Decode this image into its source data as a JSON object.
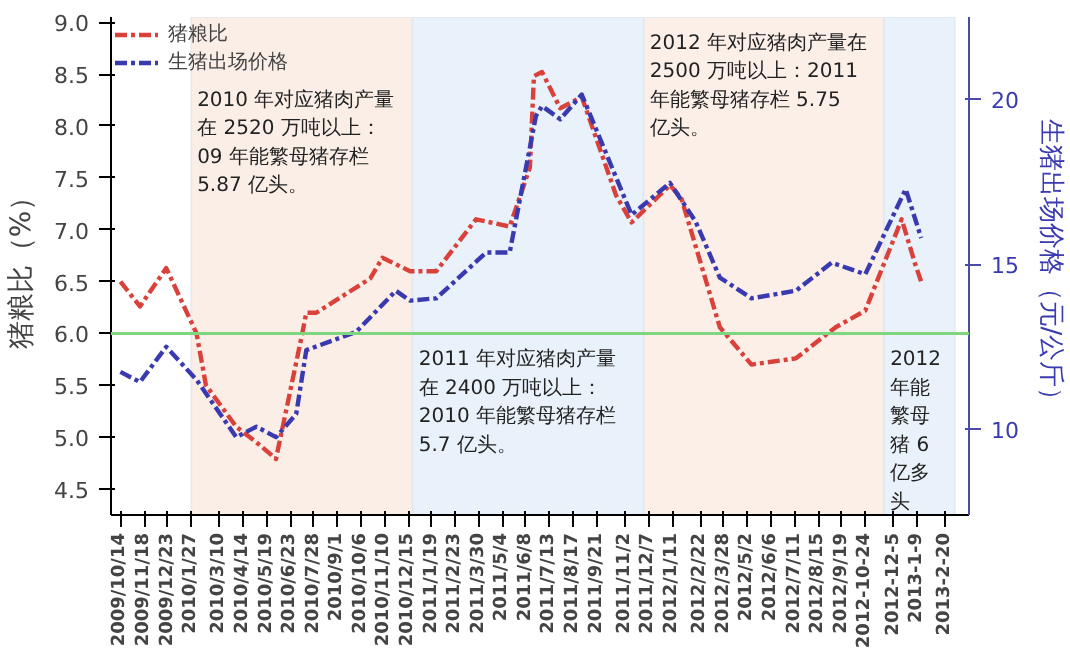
{
  "chart_data": {
    "type": "line",
    "ylabel": "猪粮比（%）",
    "y2label": "生猪出场价格（元/公斤）",
    "xlim": [
      "2009-09-30",
      "2013-03-27"
    ],
    "ylim": [
      4.25,
      9.05
    ],
    "y2lim": [
      7.4,
      22.5
    ],
    "xticks": [
      {
        "value": "2009-10-14",
        "label": "2009/10/14"
      },
      {
        "value": "2009-11-18",
        "label": "2009/11/18"
      },
      {
        "value": "2009-12-23",
        "label": "2009/12/23"
      },
      {
        "value": "2010-01-27",
        "label": "2010/1/27"
      },
      {
        "value": "2010-03-10",
        "label": "2010/3/10"
      },
      {
        "value": "2010-04-14",
        "label": "2010/4/14"
      },
      {
        "value": "2010-05-19",
        "label": "2010/5/19"
      },
      {
        "value": "2010-06-23",
        "label": "2010/6/23"
      },
      {
        "value": "2010-07-28",
        "label": "2010/7/28"
      },
      {
        "value": "2010-09-01",
        "label": "2010/9/1"
      },
      {
        "value": "2010-10-06",
        "label": "2010/10/6"
      },
      {
        "value": "2010-11-10",
        "label": "2010/11/10"
      },
      {
        "value": "2010-12-15",
        "label": "2010/12/15"
      },
      {
        "value": "2011-01-19",
        "label": "2011/1/19"
      },
      {
        "value": "2011-02-23",
        "label": "2011/2/23"
      },
      {
        "value": "2011-03-30",
        "label": "2011/3/30"
      },
      {
        "value": "2011-05-04",
        "label": "2011/5/4"
      },
      {
        "value": "2011-06-08",
        "label": "2011/6/8"
      },
      {
        "value": "2011-07-13",
        "label": "2011/7/13"
      },
      {
        "value": "2011-08-17",
        "label": "2011/8/17"
      },
      {
        "value": "2011-09-21",
        "label": "2011/9/21"
      },
      {
        "value": "2011-11-02",
        "label": "2011/11/2"
      },
      {
        "value": "2011-12-07",
        "label": "2011/12/7"
      },
      {
        "value": "2012-01-11",
        "label": "2012/1/11"
      },
      {
        "value": "2012-02-22",
        "label": "2012/2/22"
      },
      {
        "value": "2012-03-28",
        "label": "2012/3/28"
      },
      {
        "value": "2012-05-02",
        "label": "2012/5/2"
      },
      {
        "value": "2012-06-06",
        "label": "2012/6/6"
      },
      {
        "value": "2012-07-11",
        "label": "2012/7/11"
      },
      {
        "value": "2012-08-15",
        "label": "2012/8/15"
      },
      {
        "value": "2012-09-19",
        "label": "2012/9/19"
      },
      {
        "value": "2012-10-24",
        "label": "2012-10-24"
      },
      {
        "value": "2012-12-05",
        "label": "2012-12-5"
      },
      {
        "value": "2013-01-09",
        "label": "2013-1-9"
      },
      {
        "value": "2013-02-20",
        "label": "2013-2-20"
      }
    ],
    "yticks": [
      {
        "value": 4.5,
        "label": "4.5"
      },
      {
        "value": 5,
        "label": "5.0"
      },
      {
        "value": 5.5,
        "label": "5.5"
      },
      {
        "value": 6,
        "label": "6.0"
      },
      {
        "value": 6.5,
        "label": "6.5"
      },
      {
        "value": 7,
        "label": "7.0"
      },
      {
        "value": 7.5,
        "label": "7.5"
      },
      {
        "value": 8,
        "label": "8.0"
      },
      {
        "value": 8.5,
        "label": "8.5"
      },
      {
        "value": 9,
        "label": "9.0"
      }
    ],
    "y2ticks": [
      10,
      15,
      20
    ],
    "series": [
      {
        "name": "猪粮比",
        "color": "#d9413a",
        "x": [
          "2009-10-14",
          "2009-11-12",
          "2009-12-21",
          "2010-02-04",
          "2010-02-18",
          "2010-04-04",
          "2010-05-04",
          "2010-06-02",
          "2010-07-11",
          "2010-07-17",
          "2010-08-01",
          "2010-10-20",
          "2010-11-07",
          "2010-12-18",
          "2011-01-26",
          "2011-03-26",
          "2011-05-15",
          "2011-06-14",
          "2011-06-20",
          "2011-07-02",
          "2011-07-29",
          "2011-08-30",
          "2011-10-20",
          "2011-11-12",
          "2012-01-08",
          "2012-01-25",
          "2012-03-22",
          "2012-05-08",
          "2012-07-13",
          "2012-09-10",
          "2012-10-24",
          "2012-12-17",
          "2013-01-06",
          "2013-01-15"
        ],
        "values": [
          6.5,
          6.26,
          6.63,
          6.0,
          5.5,
          5.1,
          4.95,
          4.79,
          6.0,
          6.2,
          6.2,
          6.53,
          6.73,
          6.6,
          6.6,
          7.1,
          7.03,
          7.6,
          8.48,
          8.52,
          8.17,
          8.28,
          7.33,
          7.07,
          7.43,
          7.3,
          6.06,
          5.7,
          5.76,
          6.06,
          6.22,
          7.1,
          6.67,
          6.5
        ]
      },
      {
        "name": "生猪出场价格",
        "color": "#3a3ab0",
        "axis": "y2",
        "x": [
          "2009-10-14",
          "2009-11-12",
          "2009-12-21",
          "2010-02-04",
          "2010-04-04",
          "2010-05-04",
          "2010-06-02",
          "2010-07-02",
          "2010-07-17",
          "2010-09-29",
          "2010-11-27",
          "2010-12-18",
          "2011-01-26",
          "2011-04-10",
          "2011-05-15",
          "2011-06-23",
          "2011-07-02",
          "2011-07-29",
          "2011-08-30",
          "2011-11-12",
          "2012-01-08",
          "2012-02-15",
          "2012-03-22",
          "2012-05-08",
          "2012-07-13",
          "2012-09-04",
          "2012-10-24",
          "2012-12-23",
          "2013-01-15"
        ],
        "values": [
          11.74,
          11.43,
          12.5,
          11.5,
          9.76,
          10.08,
          9.76,
          10.46,
          12.4,
          12.95,
          14.2,
          13.9,
          13.97,
          15.36,
          15.36,
          19.5,
          19.8,
          19.4,
          20.15,
          16.5,
          17.47,
          16.3,
          14.6,
          13.97,
          14.2,
          15.05,
          14.7,
          17.28,
          15.8
        ]
      }
    ],
    "ref_lines": [
      {
        "axis": "y",
        "value": 6.0,
        "color": "#7ed67e"
      }
    ],
    "bands": [
      {
        "axis": "x",
        "from": "2010-01-27",
        "to": "2010-12-22",
        "color": "#fbeee6",
        "label": "2010 年对应猪肉产量在 2520 万吨以上：09 年能繁母猪存栏 5.87 亿头。"
      },
      {
        "axis": "x",
        "from": "2010-12-22",
        "to": "2011-11-30",
        "color": "#e9f2fa",
        "label": "2011 年对应猪肉产量在 2400 万吨以上：2010 年能繁母猪存栏 5.7 亿头。"
      },
      {
        "axis": "x",
        "from": "2011-11-30",
        "to": "2012-11-21",
        "color": "#fcefe8",
        "label": "2012 年对应猪肉产量在 2500 万吨以上：2011 年能繁母猪存栏 5.75 亿头。"
      },
      {
        "axis": "x",
        "from": "2012-11-21",
        "to": "2013-03-06",
        "color": "#e9f2fa",
        "label": "2012 年能繁母猪 6 亿多头"
      }
    ],
    "line_style": "dashed",
    "legend": "top left",
    "grid": false
  }
}
